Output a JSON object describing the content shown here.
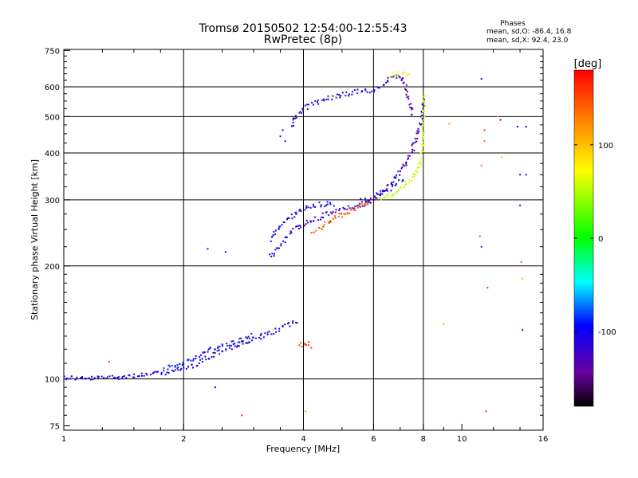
{
  "chart_data": {
    "type": "scatter",
    "title": "Tromsø 20150502 12:54:00-12:55:43",
    "subtitle": "RwPretec (8p)",
    "xlabel": "Frequency [MHz]",
    "ylabel": "Stationary phase Virtual Height [km]",
    "x_scale": "log2",
    "y_scale": "log",
    "xlim": [
      1,
      16
    ],
    "ylim": [
      73,
      755
    ],
    "x_ticks": [
      {
        "v": 1,
        "label": "1"
      },
      {
        "v": 2,
        "label": "2"
      },
      {
        "v": 4,
        "label": "4"
      },
      {
        "v": 6,
        "label": "6"
      },
      {
        "v": 8,
        "label": "8"
      },
      {
        "v": 10,
        "label": "10"
      },
      {
        "v": 16,
        "label": "16"
      }
    ],
    "y_ticks": [
      {
        "v": 75,
        "label": "75"
      },
      {
        "v": 100,
        "label": "100"
      },
      {
        "v": 200,
        "label": "200"
      },
      {
        "v": 300,
        "label": "300"
      },
      {
        "v": 400,
        "label": "400"
      },
      {
        "v": 500,
        "label": "500"
      },
      {
        "v": 600,
        "label": "600"
      },
      {
        "v": 750,
        "label": "750"
      }
    ],
    "x_grid": [
      2,
      4,
      6,
      8
    ],
    "y_grid": [
      100,
      200,
      300,
      400,
      500,
      600
    ],
    "grid": true,
    "legend": {
      "heading": "Phases",
      "o_line": "mean, sd,O: -86.4, 16.8",
      "x_line": "mean, sd,X:  92.4, 23.0"
    },
    "colorbar": {
      "label": "[deg]",
      "range": [
        -180,
        180
      ],
      "ticks": [
        {
          "v": 100,
          "label": "100"
        },
        {
          "v": 0,
          "label": "0"
        },
        {
          "v": -100,
          "label": "-100"
        }
      ]
    },
    "trace_segments": [
      {
        "phase": -95,
        "points": [
          [
            1.0,
            101
          ],
          [
            1.15,
            100
          ],
          [
            1.3,
            101
          ],
          [
            1.5,
            102
          ],
          [
            1.7,
            103
          ],
          [
            1.9,
            105
          ],
          [
            2.1,
            108
          ],
          [
            2.3,
            114
          ],
          [
            2.5,
            119
          ],
          [
            2.8,
            124
          ],
          [
            3.1,
            129
          ],
          [
            3.4,
            134
          ],
          [
            3.7,
            140
          ],
          [
            3.9,
            142
          ]
        ]
      },
      {
        "phase": -80,
        "points": [
          [
            1.8,
            107
          ],
          [
            2.0,
            110
          ],
          [
            2.2,
            116
          ],
          [
            2.4,
            121
          ],
          [
            2.6,
            124
          ],
          [
            2.8,
            127
          ],
          [
            3.0,
            131
          ]
        ]
      },
      {
        "phase": -105,
        "points": [
          [
            3.3,
            212
          ],
          [
            3.4,
            220
          ],
          [
            3.5,
            228
          ],
          [
            3.6,
            236
          ],
          [
            3.7,
            244
          ],
          [
            3.8,
            251
          ],
          [
            4.0,
            258
          ],
          [
            4.3,
            266
          ],
          [
            4.6,
            275
          ],
          [
            5.0,
            283
          ],
          [
            5.4,
            289
          ],
          [
            5.8,
            292
          ],
          [
            6.0,
            296
          ]
        ]
      },
      {
        "phase": -90,
        "points": [
          [
            3.3,
            235
          ],
          [
            3.45,
            250
          ],
          [
            3.6,
            262
          ],
          [
            3.75,
            272
          ],
          [
            3.9,
            280
          ],
          [
            4.1,
            286
          ],
          [
            4.4,
            292
          ],
          [
            4.8,
            293
          ]
        ]
      },
      {
        "phase": 145,
        "points": [
          [
            4.2,
            245
          ],
          [
            4.4,
            252
          ],
          [
            4.6,
            260
          ],
          [
            4.8,
            268
          ],
          [
            5.0,
            274
          ],
          [
            5.3,
            281
          ],
          [
            5.6,
            290
          ],
          [
            5.9,
            298
          ]
        ]
      },
      {
        "phase": -110,
        "points": [
          [
            6.0,
            300
          ],
          [
            6.3,
            315
          ],
          [
            6.6,
            330
          ],
          [
            6.9,
            350
          ],
          [
            7.2,
            375
          ],
          [
            7.5,
            405
          ],
          [
            7.7,
            440
          ],
          [
            7.9,
            480
          ],
          [
            7.95,
            520
          ],
          [
            8.0,
            560
          ]
        ]
      },
      {
        "phase": -85,
        "points": [
          [
            5.6,
            298
          ],
          [
            5.9,
            302
          ],
          [
            6.2,
            310
          ],
          [
            6.5,
            318
          ],
          [
            6.8,
            330
          ],
          [
            7.2,
            345
          ]
        ]
      },
      {
        "phase": 65,
        "points": [
          [
            6.2,
            300
          ],
          [
            6.5,
            306
          ],
          [
            6.8,
            314
          ],
          [
            7.1,
            325
          ],
          [
            7.4,
            338
          ],
          [
            7.7,
            358
          ],
          [
            7.9,
            385
          ],
          [
            7.97,
            420
          ],
          [
            8.0,
            470
          ],
          [
            8.02,
            520
          ],
          [
            8.04,
            570
          ]
        ]
      },
      {
        "phase": -100,
        "points": [
          [
            3.75,
            470
          ],
          [
            3.85,
            505
          ],
          [
            4.0,
            525
          ],
          [
            4.3,
            545
          ],
          [
            4.6,
            560
          ],
          [
            5.0,
            572
          ],
          [
            5.4,
            580
          ],
          [
            5.8,
            585
          ],
          [
            6.1,
            592
          ],
          [
            6.3,
            608
          ],
          [
            6.5,
            625
          ],
          [
            6.8,
            635
          ],
          [
            7.1,
            640
          ]
        ]
      },
      {
        "phase": -120,
        "points": [
          [
            7.1,
            640
          ],
          [
            7.15,
            620
          ],
          [
            7.25,
            590
          ],
          [
            7.35,
            560
          ],
          [
            7.45,
            530
          ],
          [
            7.5,
            500
          ]
        ]
      },
      {
        "phase": 75,
        "points": [
          [
            6.6,
            648
          ],
          [
            6.9,
            650
          ],
          [
            7.2,
            650
          ],
          [
            7.4,
            645
          ]
        ]
      },
      {
        "phase": 155,
        "points": [
          [
            3.9,
            122
          ],
          [
            4.0,
            125
          ],
          [
            4.1,
            124
          ],
          [
            4.2,
            121
          ]
        ]
      }
    ],
    "isolated_points": [
      [
        1.3,
        111,
        170
      ],
      [
        2.3,
        222,
        -90
      ],
      [
        2.55,
        218,
        -95
      ],
      [
        2.8,
        80,
        160
      ],
      [
        2.4,
        95,
        -80
      ],
      [
        3.5,
        443,
        -105
      ],
      [
        3.55,
        460,
        -110
      ],
      [
        3.6,
        430,
        -100
      ],
      [
        4.05,
        82,
        110
      ],
      [
        9.0,
        140,
        110
      ],
      [
        9.3,
        478,
        125
      ],
      [
        11.2,
        630,
        -110
      ],
      [
        11.1,
        240,
        155
      ],
      [
        11.2,
        370,
        130
      ],
      [
        11.2,
        225,
        -120
      ],
      [
        11.4,
        430,
        140
      ],
      [
        11.4,
        460,
        160
      ],
      [
        11.5,
        82,
        165
      ],
      [
        11.6,
        175,
        160
      ],
      [
        12.3,
        500,
        120
      ],
      [
        12.5,
        490,
        -110
      ],
      [
        12.6,
        390,
        100
      ],
      [
        13.8,
        470,
        -90
      ],
      [
        14.0,
        350,
        -120
      ],
      [
        14.0,
        290,
        -115
      ],
      [
        14.1,
        205,
        150
      ],
      [
        14.2,
        185,
        110
      ],
      [
        14.2,
        135,
        -105
      ],
      [
        14.5,
        470,
        -85
      ],
      [
        14.5,
        350,
        -110
      ]
    ]
  }
}
